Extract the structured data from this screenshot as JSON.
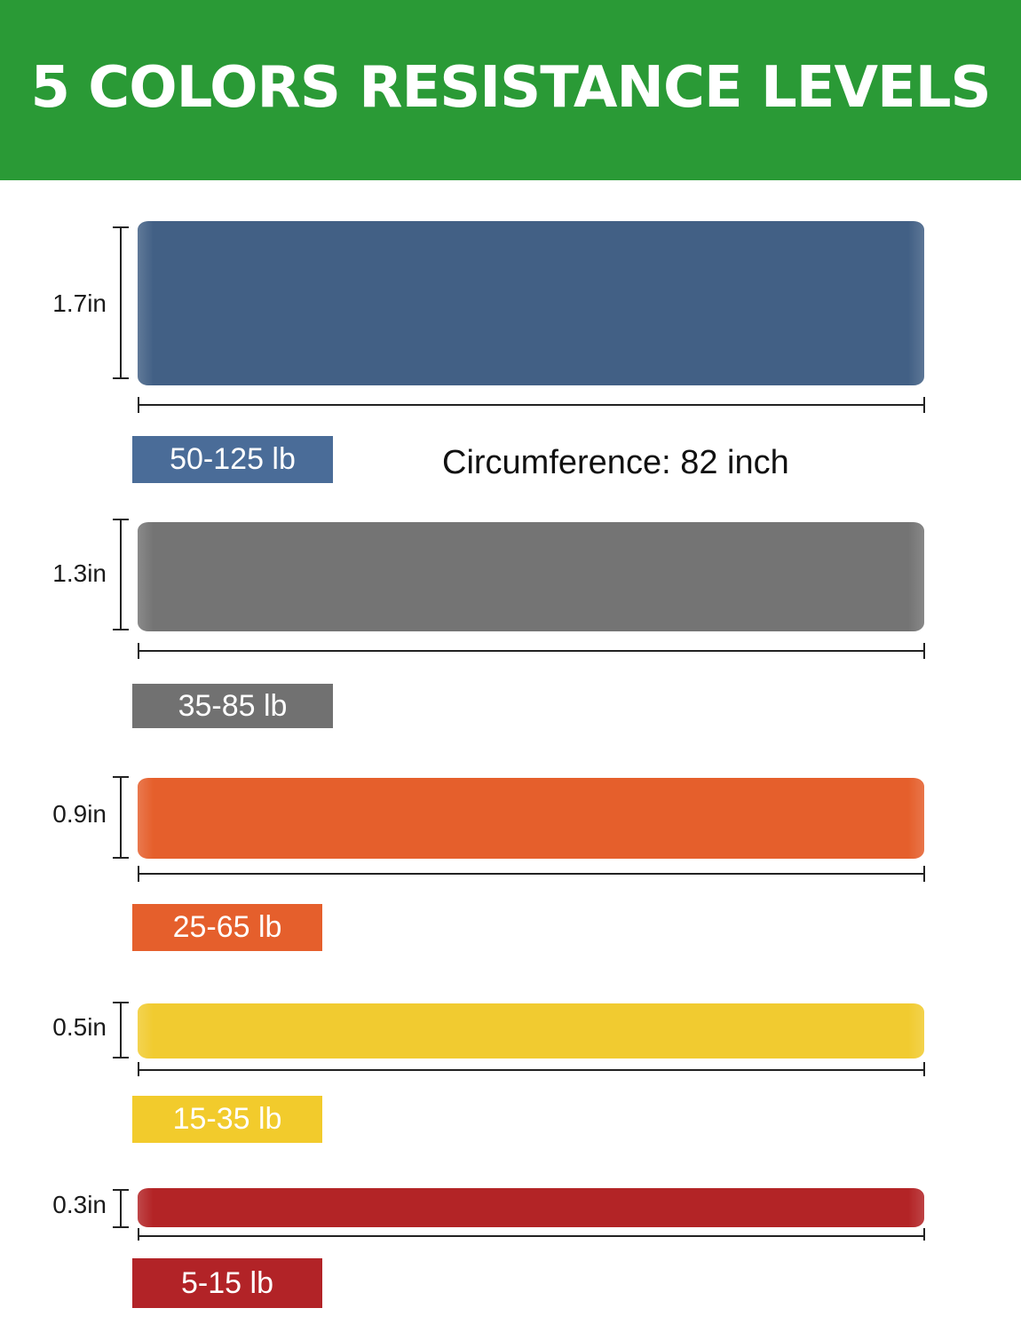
{
  "header": {
    "title": "5 COLORS RESISTANCE LEVELS",
    "color": "#2a9a36"
  },
  "circumference": "Circumference: 82 inch",
  "bands": [
    {
      "name": "blue",
      "width": "1.7in",
      "resistance": "50-125 lb",
      "color": "#426085",
      "label_color": "#4a6c98"
    },
    {
      "name": "gray",
      "width": "1.3in",
      "resistance": "35-85 lb",
      "color": "#747474",
      "label_color": "#717171"
    },
    {
      "name": "orange",
      "width": "0.9in",
      "resistance": "25-65 lb",
      "color": "#e55f2c",
      "label_color": "#e55f2c"
    },
    {
      "name": "yellow",
      "width": "0.5in",
      "resistance": "15-35 lb",
      "color": "#f1cb30",
      "label_color": "#f2cb2c"
    },
    {
      "name": "red",
      "width": "0.3in",
      "resistance": "5-15 lb",
      "color": "#b32426",
      "label_color": "#b22327"
    }
  ]
}
